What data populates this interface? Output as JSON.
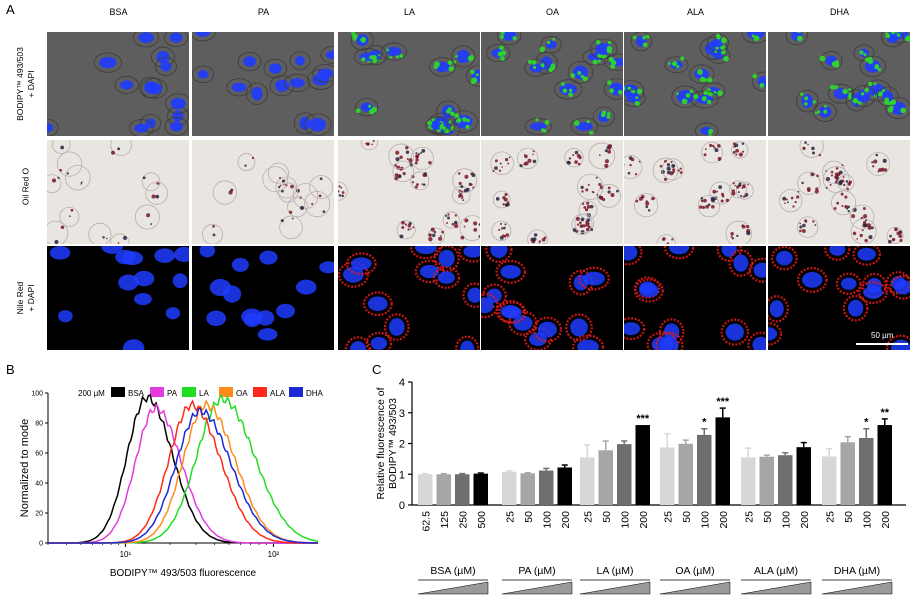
{
  "panel_a": {
    "letter": "A",
    "columns": [
      "BSA",
      "PA",
      "LA",
      "OA",
      "ALA",
      "DHA"
    ],
    "rows": [
      {
        "label": "BODIPY™ 493/503\n+ DAPI",
        "stain": "bodipy"
      },
      {
        "label": "Oil Red O",
        "stain": "oilred"
      },
      {
        "label": "Nile Red\n+ DAPI",
        "stain": "nilered"
      }
    ],
    "scale_bar": "50 µm",
    "colors": {
      "dapi": "#1f3cff",
      "bodipy": "#2fd12f",
      "oilred": "#7a1428",
      "nilered": "#e01818",
      "gray_bg": "#5e5e5e",
      "bf_bg": "#e9e6e1"
    }
  },
  "panel_b": {
    "letter": "B",
    "chart_data": {
      "type": "line",
      "title": "",
      "legend_prefix": "200 µM",
      "xlabel": "BODIPY™ 493/503 fluorescence",
      "ylabel": "Normalized to mode",
      "xscale": "log",
      "xlim": [
        3,
        200
      ],
      "ylim": [
        0,
        100
      ],
      "x_ticks": [
        {
          "value": 10,
          "label": "10¹"
        },
        {
          "value": 100,
          "label": "10²"
        }
      ],
      "y_ticks": [
        0,
        20,
        40,
        60,
        80,
        100
      ],
      "legend_position": "top",
      "series": [
        {
          "name": "BSA",
          "color": "#000000",
          "peak": 14,
          "width": 0.15,
          "height": 97
        },
        {
          "name": "PA",
          "color": "#e43be0",
          "peak": 16,
          "width": 0.15,
          "height": 90
        },
        {
          "name": "LA",
          "color": "#22dd22",
          "peak": 45,
          "width": 0.19,
          "height": 96
        },
        {
          "name": "OA",
          "color": "#ff8c1a",
          "peak": 35,
          "width": 0.17,
          "height": 92
        },
        {
          "name": "ALA",
          "color": "#ff2a1a",
          "peak": 28,
          "width": 0.17,
          "height": 92
        },
        {
          "name": "DHA",
          "color": "#1a2bd6",
          "peak": 32,
          "width": 0.18,
          "height": 88
        }
      ]
    }
  },
  "panel_c": {
    "letter": "C",
    "chart_data": {
      "type": "bar",
      "ylabel": "Relative fluorescence of BODIPY™ 493/503",
      "ylim": [
        0,
        4
      ],
      "y_ticks": [
        0,
        1,
        2,
        3,
        4
      ],
      "groups": [
        {
          "label": "BSA (µM)",
          "ticks": [
            "62.5",
            "125",
            "250",
            "500"
          ],
          "values": [
            1.0,
            1.0,
            1.0,
            1.02
          ],
          "errors": [
            0.02,
            0.02,
            0.02,
            0.02
          ],
          "sig": [
            "",
            "",
            "",
            ""
          ]
        },
        {
          "label": "PA (µM)",
          "ticks": [
            "25",
            "50",
            "100",
            "200"
          ],
          "values": [
            1.08,
            1.03,
            1.12,
            1.22
          ],
          "errors": [
            0.03,
            0.02,
            0.07,
            0.08
          ],
          "sig": [
            "",
            "",
            "",
            ""
          ]
        },
        {
          "label": "LA (µM)",
          "ticks": [
            "25",
            "50",
            "100",
            "200"
          ],
          "values": [
            1.55,
            1.78,
            1.98,
            2.6
          ],
          "errors": [
            0.4,
            0.3,
            0.1,
            0.0
          ],
          "sig": [
            "",
            "",
            "",
            "***"
          ]
        },
        {
          "label": "OA (µM)",
          "ticks": [
            "25",
            "50",
            "100",
            "200"
          ],
          "values": [
            1.87,
            1.99,
            2.28,
            2.85
          ],
          "errors": [
            0.45,
            0.12,
            0.2,
            0.3
          ],
          "sig": [
            "",
            "",
            "*",
            "***"
          ]
        },
        {
          "label": "ALA (µM)",
          "ticks": [
            "25",
            "50",
            "100",
            "200"
          ],
          "values": [
            1.55,
            1.57,
            1.62,
            1.88
          ],
          "errors": [
            0.3,
            0.05,
            0.08,
            0.15
          ],
          "sig": [
            "",
            "",
            "",
            ""
          ]
        },
        {
          "label": "DHA (µM)",
          "ticks": [
            "25",
            "50",
            "100",
            "200"
          ],
          "values": [
            1.58,
            2.04,
            2.18,
            2.6
          ],
          "errors": [
            0.25,
            0.18,
            0.3,
            0.2
          ],
          "sig": [
            "",
            "",
            "*",
            "**"
          ]
        }
      ],
      "bar_colors": [
        "#d7d7d7",
        "#a6a6a6",
        "#6f6f6f",
        "#000000"
      ]
    }
  }
}
